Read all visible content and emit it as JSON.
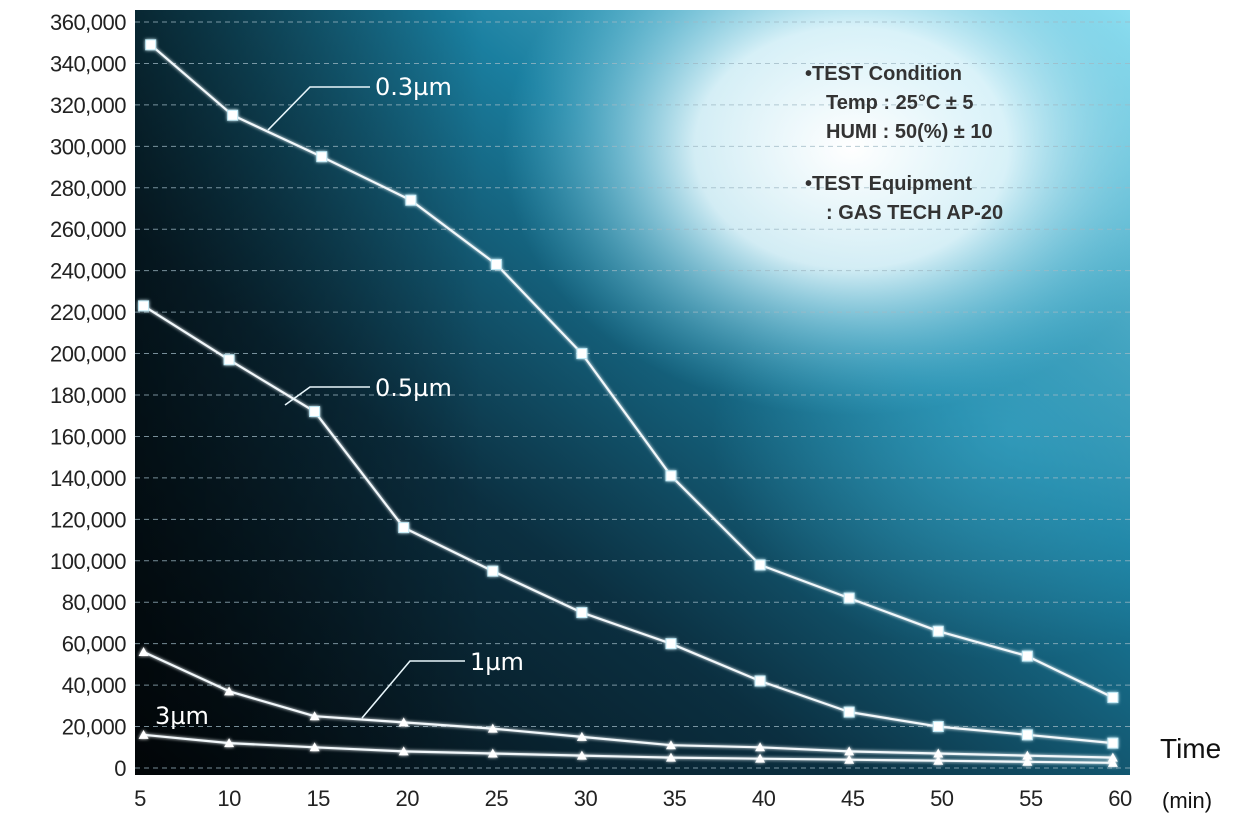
{
  "chart_data": {
    "type": "line",
    "title": "",
    "xlabel": "Time",
    "x_unit": "(min)",
    "ylabel": "",
    "x_ticks": [
      5,
      10,
      15,
      20,
      25,
      30,
      35,
      40,
      45,
      50,
      55,
      60
    ],
    "y_ticks": [
      "0",
      "20,000",
      "40,000",
      "60,000",
      "80,000",
      "100,000",
      "120,000",
      "140,000",
      "160,000",
      "180,000",
      "200,000",
      "220,000",
      "240,000",
      "260,000",
      "280,000",
      "300,000",
      "320,000",
      "340,000",
      "360,000"
    ],
    "xlim": [
      5,
      60
    ],
    "ylim": [
      0,
      360000
    ],
    "grid": true,
    "colors": {
      "background_dark": "#06151e",
      "background_mid": "#0f4a62",
      "background_light": "#3fb6d6",
      "line": "#f2f8fb",
      "grid": "#9fb8c4"
    },
    "series": [
      {
        "name": "0.3µm",
        "x": [
          5.6,
          10.2,
          15.2,
          20.2,
          25.0,
          29.8,
          34.8,
          39.8,
          44.8,
          49.8,
          54.8,
          59.6
        ],
        "y": [
          349000,
          315000,
          295000,
          274000,
          243000,
          200000,
          141000,
          98000,
          82000,
          66000,
          54000,
          34000
        ]
      },
      {
        "name": "0.5µm",
        "x": [
          5.2,
          10.0,
          14.8,
          19.8,
          24.8,
          29.8,
          34.8,
          39.8,
          44.8,
          49.8,
          54.8,
          59.6
        ],
        "y": [
          223000,
          197000,
          172000,
          116000,
          95000,
          75000,
          60000,
          42000,
          27000,
          20000,
          16000,
          12000
        ]
      },
      {
        "name": "1µm",
        "x": [
          5.2,
          10.0,
          14.8,
          19.8,
          24.8,
          29.8,
          34.8,
          39.8,
          44.8,
          49.8,
          54.8,
          59.6
        ],
        "y": [
          56000,
          37000,
          25000,
          22000,
          19000,
          15000,
          11000,
          10000,
          8000,
          7000,
          6000,
          5000
        ]
      },
      {
        "name": "3µm",
        "x": [
          5.2,
          10.0,
          14.8,
          19.8,
          24.8,
          29.8,
          34.8,
          39.8,
          44.8,
          49.8,
          54.8,
          59.6
        ],
        "y": [
          16000,
          12000,
          10000,
          8000,
          7000,
          6000,
          5000,
          4500,
          4000,
          3500,
          3000,
          2500
        ]
      }
    ],
    "annotations": {
      "test_condition_title": "•TEST Condition",
      "test_condition_temp": "Temp : 25°C ± 5",
      "test_condition_humi": "HUMI : 50(%) ± 10",
      "test_equipment_title": "•TEST Equipment",
      "test_equipment_value": ": GAS TECH AP-20"
    }
  }
}
